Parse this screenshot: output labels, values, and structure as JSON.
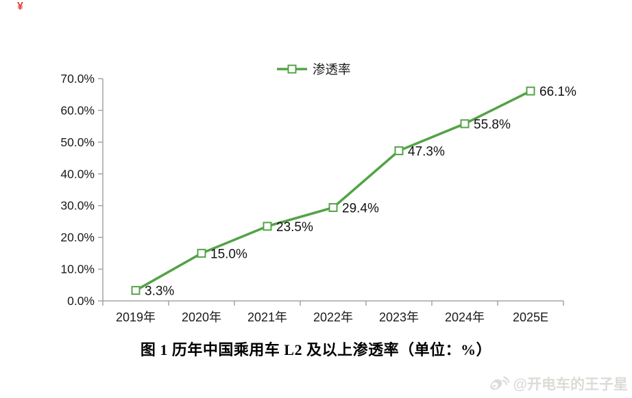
{
  "page": {
    "corner_mark": "¥",
    "caption": "图 1  历年中国乘用车 L2 及以上渗透率（单位：%）",
    "watermark_text": "@开电车的王子星",
    "watermark_icon": "weibo-icon",
    "background_color": "#ffffff"
  },
  "chart_data": {
    "type": "line",
    "title": "",
    "legend": [
      "渗透率"
    ],
    "legend_position": "top-center",
    "categories": [
      "2019年",
      "2020年",
      "2021年",
      "2022年",
      "2023年",
      "2024年",
      "2025E"
    ],
    "series": [
      {
        "name": "渗透率",
        "values": [
          3.3,
          15.0,
          23.5,
          29.4,
          47.3,
          55.8,
          66.1
        ]
      }
    ],
    "point_labels": [
      "3.3%",
      "15.0%",
      "23.5%",
      "29.4%",
      "47.3%",
      "55.8%",
      "66.1%"
    ],
    "ylim": [
      0,
      70
    ],
    "ytick_labels": [
      "0.0%",
      "10.0%",
      "20.0%",
      "30.0%",
      "40.0%",
      "50.0%",
      "60.0%",
      "70.0%"
    ],
    "grid": false,
    "marker": "open-square",
    "line_color": "#53a346",
    "marker_fill": "#ffffff",
    "axis_color": "#a3a3a3",
    "text_color": "#1a1a1a"
  }
}
